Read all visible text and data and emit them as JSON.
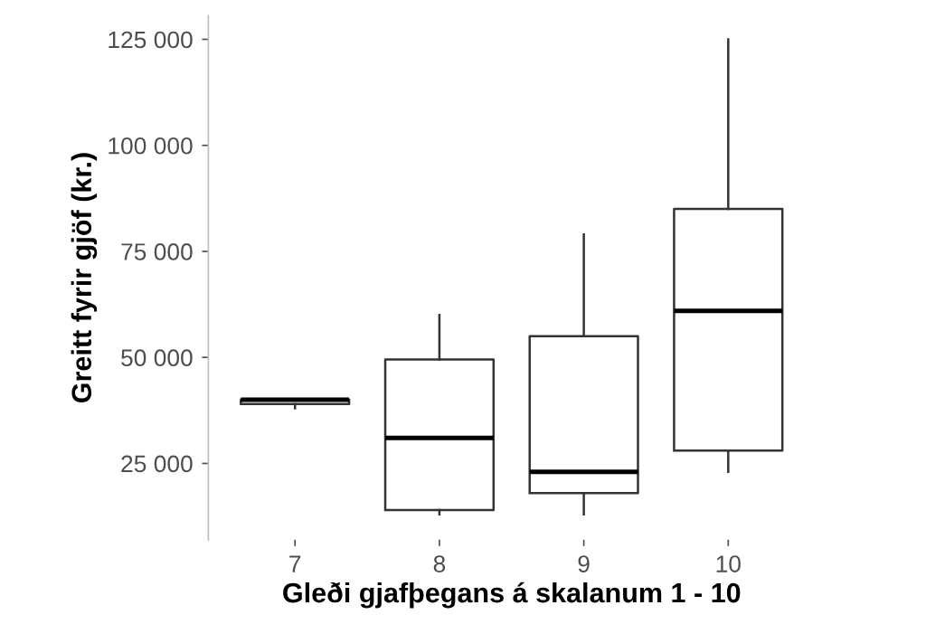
{
  "chart_data": {
    "type": "box",
    "xlabel": "Gleði gjafþegans á skalanum 1 - 10",
    "ylabel": "Greitt fyrir gjöf (kr.)",
    "categories": [
      "7",
      "8",
      "9",
      "10"
    ],
    "boxes": [
      {
        "low": 38000,
        "q1": 39000,
        "median": 40000,
        "q3": 40000,
        "high": 40000
      },
      {
        "low": 13000,
        "q1": 14000,
        "median": 31000,
        "q3": 49500,
        "high": 60000
      },
      {
        "low": 13000,
        "q1": 18000,
        "median": 23000,
        "q3": 55000,
        "high": 79000
      },
      {
        "low": 23000,
        "q1": 28000,
        "median": 61000,
        "q3": 85000,
        "high": 125000
      }
    ],
    "ylim": [
      7000,
      130600
    ],
    "yticks": [
      {
        "value": 25000,
        "label": "25 000"
      },
      {
        "value": 50000,
        "label": "50 000"
      },
      {
        "value": 75000,
        "label": "75 000"
      },
      {
        "value": 100000,
        "label": "100 000"
      },
      {
        "value": 125000,
        "label": "125 000"
      }
    ],
    "grid": false,
    "legend": false
  }
}
